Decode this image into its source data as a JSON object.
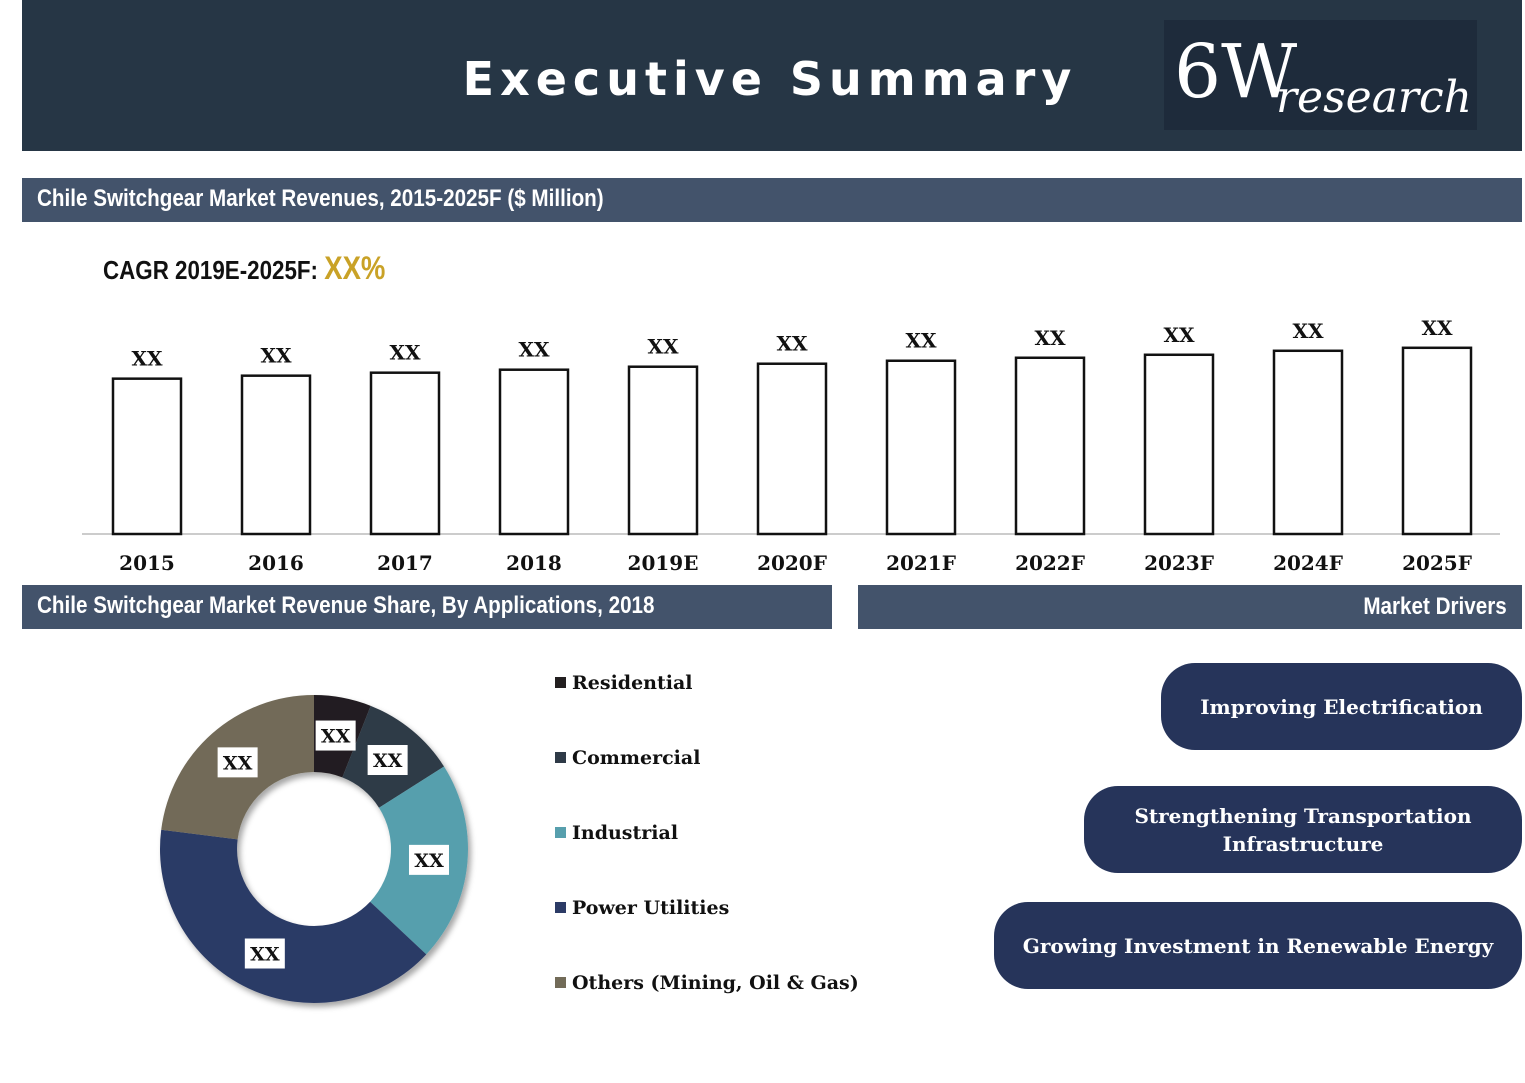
{
  "header": {
    "title": "Executive Summary",
    "logo_main": "6W",
    "logo_sub": "research"
  },
  "revenue_section": {
    "title": "Chile Switchgear Market Revenues, 2015-2025F ($ Million)",
    "cagr_label": "CAGR 2019E-2025F: ",
    "cagr_value": "XX%"
  },
  "share_section": {
    "title": "Chile Switchgear Market Revenue Share, By Applications, 2018"
  },
  "drivers_section": {
    "title": "Market Drivers",
    "items": [
      "Improving Electrification",
      "Strengthening Transportation Infrastructure",
      "Growing Investment in Renewable Energy"
    ]
  },
  "colors": {
    "header_bg": "#263645",
    "section_bar": "#43536b",
    "driver_bg": "#26345a",
    "cagr_accent": "#c9a227"
  },
  "chart_data": [
    {
      "type": "bar",
      "categories": [
        "2015",
        "2016",
        "2017",
        "2018",
        "2019E",
        "2020F",
        "2021F",
        "2022F",
        "2023F",
        "2024F",
        "2025F"
      ],
      "values": [
        156,
        159,
        162,
        165,
        168,
        171,
        174,
        177,
        180,
        184,
        187
      ],
      "data_labels": [
        "XX",
        "XX",
        "XX",
        "XX",
        "XX",
        "XX",
        "XX",
        "XX",
        "XX",
        "XX",
        "XX"
      ],
      "ylim": [
        0,
        235
      ],
      "bar_fill": "#ffffff",
      "bar_stroke": "#111111",
      "grid": false
    },
    {
      "type": "pie",
      "donut": true,
      "categories": [
        "Residential",
        "Commercial",
        "Industrial",
        "Power Utilities",
        "Others (Mining, Oil & Gas)"
      ],
      "values": [
        6,
        10,
        21,
        40,
        23
      ],
      "data_labels": [
        "XX",
        "XX",
        "XX",
        "XX",
        "XX"
      ],
      "colors": [
        "#231f20",
        "#2e3a47",
        "#579fad",
        "#2c3b66",
        "#726b58"
      ],
      "legend_position": "right"
    }
  ]
}
